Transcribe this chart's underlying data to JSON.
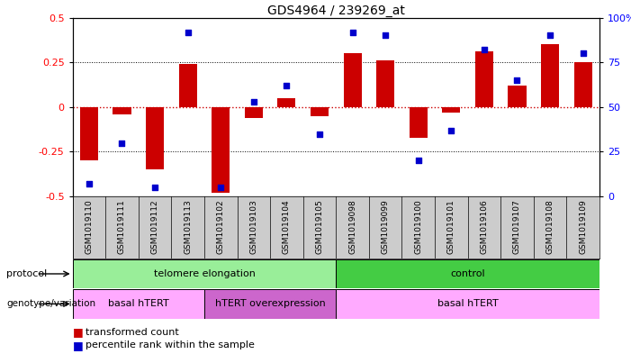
{
  "title": "GDS4964 / 239269_at",
  "samples": [
    "GSM1019110",
    "GSM1019111",
    "GSM1019112",
    "GSM1019113",
    "GSM1019102",
    "GSM1019103",
    "GSM1019104",
    "GSM1019105",
    "GSM1019098",
    "GSM1019099",
    "GSM1019100",
    "GSM1019101",
    "GSM1019106",
    "GSM1019107",
    "GSM1019108",
    "GSM1019109"
  ],
  "transformed_count": [
    -0.3,
    -0.04,
    -0.35,
    0.24,
    -0.48,
    -0.06,
    0.05,
    -0.05,
    0.3,
    0.26,
    -0.17,
    -0.03,
    0.31,
    0.12,
    0.35,
    0.25
  ],
  "percentile_rank": [
    7,
    30,
    5,
    92,
    5,
    53,
    62,
    35,
    92,
    90,
    20,
    37,
    82,
    65,
    90,
    80
  ],
  "ylim_left": [
    -0.5,
    0.5
  ],
  "ylim_right": [
    0,
    100
  ],
  "yticks_left": [
    -0.5,
    -0.25,
    0,
    0.25,
    0.5
  ],
  "yticks_right": [
    0,
    25,
    50,
    75,
    100
  ],
  "bar_color": "#cc0000",
  "dot_color": "#0000cc",
  "zero_line_color": "#cc0000",
  "protocol_groups": [
    {
      "label": "telomere elongation",
      "start": 0,
      "end": 8,
      "color": "#99ee99"
    },
    {
      "label": "control",
      "start": 8,
      "end": 16,
      "color": "#44cc44"
    }
  ],
  "genotype_groups": [
    {
      "label": "basal hTERT",
      "start": 0,
      "end": 4,
      "color": "#ffaaff"
    },
    {
      "label": "hTERT overexpression",
      "start": 4,
      "end": 8,
      "color": "#cc66cc"
    },
    {
      "label": "basal hTERT",
      "start": 8,
      "end": 16,
      "color": "#ffaaff"
    }
  ],
  "legend_red_label": "transformed count",
  "legend_blue_label": "percentile rank within the sample",
  "bg_color": "#ffffff",
  "tick_bg_color": "#cccccc"
}
